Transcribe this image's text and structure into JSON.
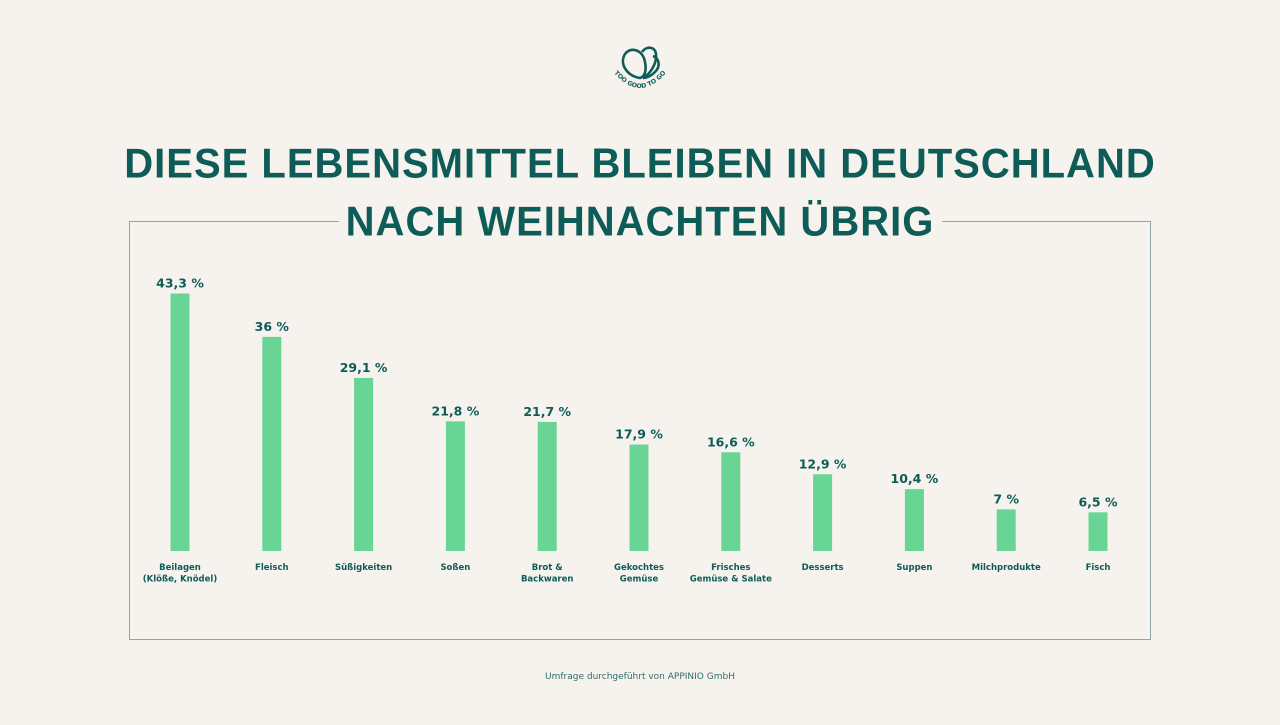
{
  "brand": {
    "logo_text": "TOO GOOD TO GO",
    "logo_icon": "too-good-to-go-leaves-icon"
  },
  "colors": {
    "background": "#f6f2ee",
    "bar": "#69d595",
    "text": "#0e5c57",
    "frame": "#8aa8a5"
  },
  "chart_data": {
    "type": "bar",
    "title_line1": "DIESE LEBENSMITTEL BLEIBEN IN DEUTSCHLAND",
    "title_line2": "NACH WEIHNACHTEN ÜBRIG",
    "xlabel": "",
    "ylabel": "",
    "ylim": [
      0,
      45
    ],
    "grid": false,
    "legend": "none",
    "unit": "%",
    "categories": [
      [
        "Beilagen",
        "(Klöße, Knödel)"
      ],
      [
        "Fleisch"
      ],
      [
        "Süßigkeiten"
      ],
      [
        "Soßen"
      ],
      [
        "Brot &",
        "Backwaren"
      ],
      [
        "Gekochtes",
        "Gemüse"
      ],
      [
        "Frisches",
        "Gemüse & Salate"
      ],
      [
        "Desserts"
      ],
      [
        "Suppen"
      ],
      [
        "Milchprodukte"
      ],
      [
        "Fisch"
      ]
    ],
    "values": [
      43.3,
      36,
      29.1,
      21.8,
      21.7,
      17.9,
      16.6,
      12.9,
      10.4,
      7,
      6.5
    ],
    "value_labels": [
      "43,3 %",
      "36 %",
      "29,1 %",
      "21,8 %",
      "21,7 %",
      "17,9 %",
      "16,6 %",
      "12,9 %",
      "10,4 %",
      "7 %",
      "6,5 %"
    ]
  },
  "footer": {
    "source": "Umfrage durchgeführt von APPINIO GmbH"
  }
}
